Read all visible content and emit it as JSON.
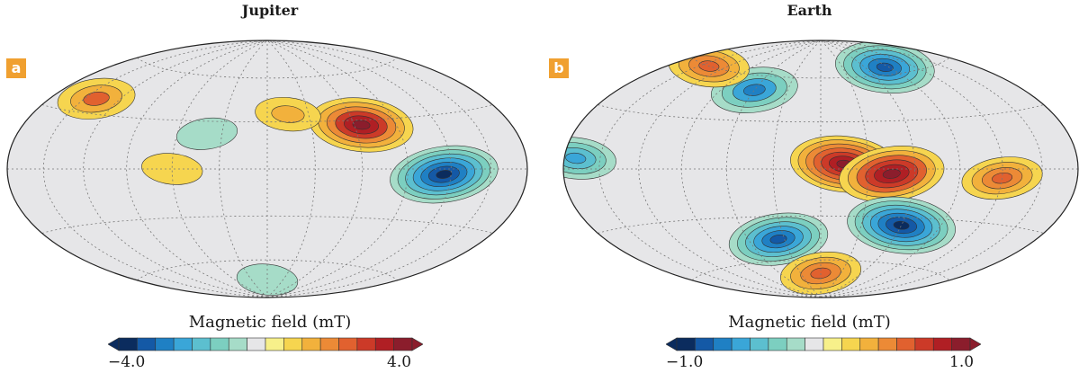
{
  "panels": [
    {
      "tag": "a",
      "title": "Jupiter",
      "colorbar": {
        "label": "Magnetic field (mT)",
        "min_label": "−4.0",
        "max_label": "4.0",
        "range": [
          -4.0,
          4.0
        ],
        "bins": 16
      }
    },
    {
      "tag": "b",
      "title": "Earth",
      "colorbar": {
        "label": "Magnetic field (mT)",
        "min_label": "−1.0",
        "max_label": "1.0",
        "range": [
          -1.0,
          1.0
        ],
        "bins": 16
      }
    }
  ],
  "colors": {
    "palette": [
      "#0b2c5e",
      "#1459a6",
      "#1f80c4",
      "#3aa6d8",
      "#5cbfcf",
      "#7ccfc0",
      "#a6dcc8",
      "#e6e6e8",
      "#f7f08a",
      "#f6d54f",
      "#f2b13c",
      "#ec8a36",
      "#e1612f",
      "#cc3a28",
      "#b01f24",
      "#8b1d2c"
    ],
    "background": "#e6e6e8",
    "tag_bg": "#f0a030"
  },
  "chart_data": [
    {
      "type": "heatmap",
      "projection": "Hammer/Mollweide (whole sphere)",
      "title": "Jupiter",
      "colorbar_label": "Magnetic field (mT)",
      "vmin": -4.0,
      "vmax": 4.0,
      "grid": true,
      "notable_features": [
        {
          "lon": 65,
          "lat": 27,
          "value": 3.5,
          "sign": "positive",
          "desc": "strong positive patch, northern hemisphere"
        },
        {
          "lon": -140,
          "lat": 38,
          "value": 1.8,
          "sign": "positive"
        },
        {
          "lon": 15,
          "lat": 35,
          "value": 1.0,
          "sign": "positive"
        },
        {
          "lon": 115,
          "lat": -3,
          "value": -3.8,
          "sign": "negative",
          "desc": "Great Blue Spot"
        },
        {
          "lon": -60,
          "lat": 0,
          "value": 0.7,
          "sign": "positive",
          "desc": "equatorial positive band"
        },
        {
          "lon": -40,
          "lat": 22,
          "value": -0.7,
          "sign": "negative"
        },
        {
          "lon": 0,
          "lat": -75,
          "value": -0.7,
          "sign": "negative"
        }
      ]
    },
    {
      "type": "heatmap",
      "projection": "Hammer/Mollweide (whole sphere)",
      "title": "Earth",
      "colorbar_label": "Magnetic field (mT)",
      "vmin": -1.0,
      "vmax": 1.0,
      "grid": true,
      "notable_features": [
        {
          "lon": 15,
          "lat": 3,
          "value": 0.95,
          "sign": "positive"
        },
        {
          "lon": 45,
          "lat": -3,
          "value": 0.9,
          "sign": "positive"
        },
        {
          "lon": 60,
          "lat": -35,
          "value": -0.95,
          "sign": "negative"
        },
        {
          "lon": -35,
          "lat": -45,
          "value": -0.8,
          "sign": "negative"
        },
        {
          "lon": 85,
          "lat": 65,
          "value": -0.8,
          "sign": "negative"
        },
        {
          "lon": -60,
          "lat": 50,
          "value": -0.6,
          "sign": "negative"
        },
        {
          "lon": -170,
          "lat": 5,
          "value": -0.5,
          "sign": "negative"
        },
        {
          "lon": 120,
          "lat": -5,
          "value": 0.5,
          "sign": "positive"
        },
        {
          "lon": -140,
          "lat": 60,
          "value": 0.5,
          "sign": "positive"
        },
        {
          "lon": 0,
          "lat": -70,
          "value": 0.5,
          "sign": "positive"
        }
      ]
    }
  ]
}
